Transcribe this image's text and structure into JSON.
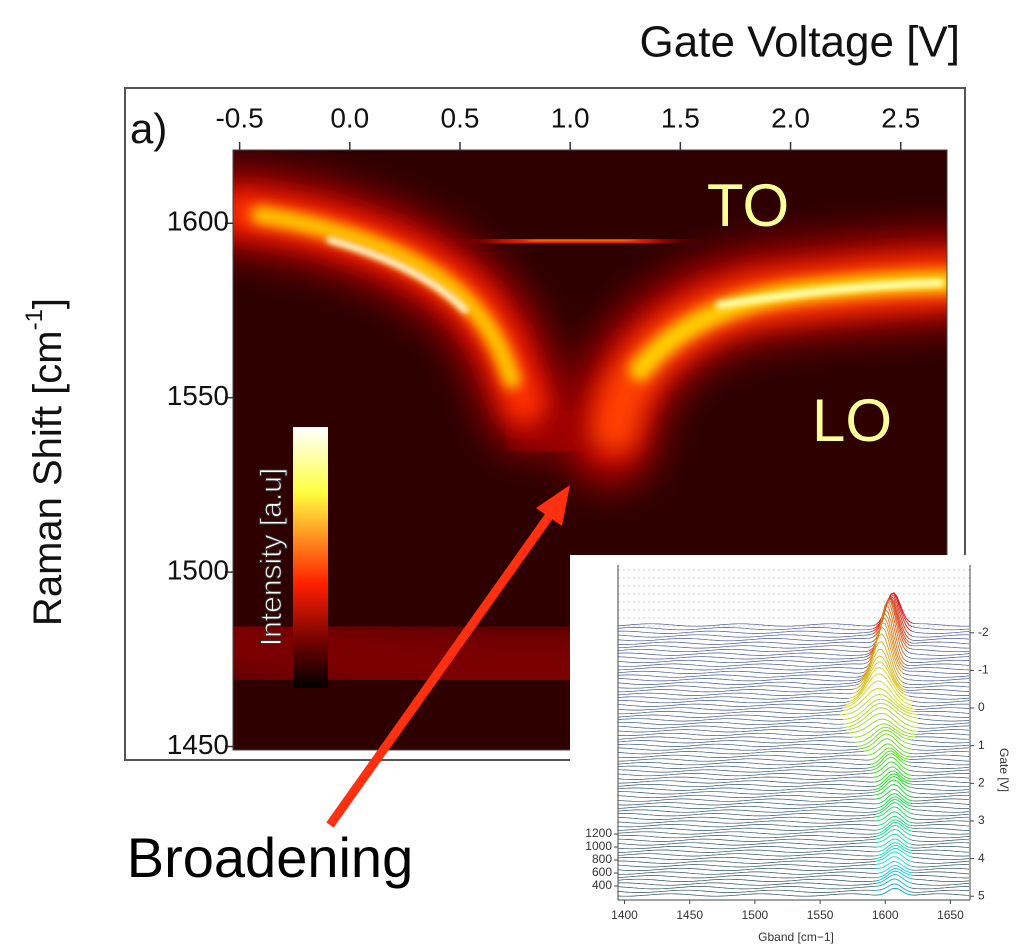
{
  "chart_data": [
    {
      "type": "heatmap",
      "xlabel": "Gate Voltage [V]",
      "ylabel": "Raman Shift [cm",
      "ylabel_superscript": "-1",
      "ylabel_end": "]",
      "panel_label": "a)",
      "colorbar_label": "Intensity [a.u]",
      "annotations": [
        "TO",
        "LO",
        "Broadening"
      ],
      "xlim": [
        -0.53,
        2.71
      ],
      "xticks": [
        -0.5,
        {
          "value": 0,
          "label": "0.0"
        },
        0.5,
        {
          "value": 1,
          "label": "1.0"
        },
        1.5,
        {
          "value": 2,
          "label": "2.0"
        },
        2.5
      ],
      "ylim": [
        1449,
        1621
      ],
      "yticks": [
        1450,
        1500,
        1550,
        1600
      ]
    },
    {
      "type": "waterfall",
      "xlabel": "Gband [cm−1]",
      "y2label": "Gate [V]",
      "xlim": [
        1395,
        1665
      ],
      "xticks": [
        1400,
        1450,
        1500,
        1550,
        1600,
        1650
      ],
      "ylim": [
        185,
        5340
      ],
      "yticks": [
        400,
        600,
        800,
        1000,
        1200
      ],
      "y2lim": [
        -3.8,
        5.1
      ],
      "y2_inverted": true,
      "y2ticks": [
        -2,
        -1,
        0,
        1,
        2,
        3,
        4,
        5
      ]
    }
  ]
}
